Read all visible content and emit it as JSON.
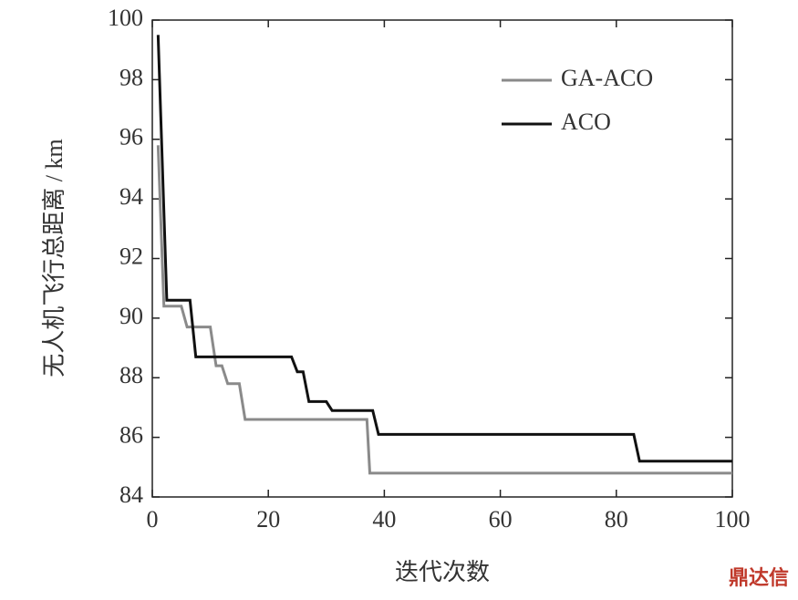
{
  "chart_data": {
    "type": "line",
    "xlabel": "迭代次数",
    "ylabel": "无人机飞行总距离 / km",
    "xlim": [
      0,
      100
    ],
    "xticks": [
      0,
      20,
      40,
      60,
      80,
      100
    ],
    "ylim": [
      84,
      100
    ],
    "yticks": [
      84,
      86,
      88,
      90,
      92,
      94,
      96,
      98,
      100
    ],
    "legend": "upper right",
    "series": [
      {
        "name": "GA-ACO",
        "color": "#8a8a8a",
        "x": [
          1,
          2,
          5,
          6,
          10,
          11,
          12,
          13,
          15,
          16,
          37,
          37.5,
          100
        ],
        "values": [
          95.8,
          90.4,
          90.4,
          89.7,
          89.7,
          88.4,
          88.4,
          87.8,
          87.8,
          86.6,
          86.6,
          84.8,
          84.8
        ]
      },
      {
        "name": "ACO",
        "color": "#111111",
        "x": [
          1,
          2.5,
          6.5,
          7.5,
          24,
          25,
          26,
          27,
          30,
          31,
          38,
          39,
          83,
          84,
          100
        ],
        "values": [
          99.5,
          90.6,
          90.6,
          88.7,
          88.7,
          88.2,
          88.2,
          87.2,
          87.2,
          86.9,
          86.9,
          86.1,
          86.1,
          85.2,
          85.2
        ]
      }
    ],
    "watermark": "鼎达信"
  }
}
